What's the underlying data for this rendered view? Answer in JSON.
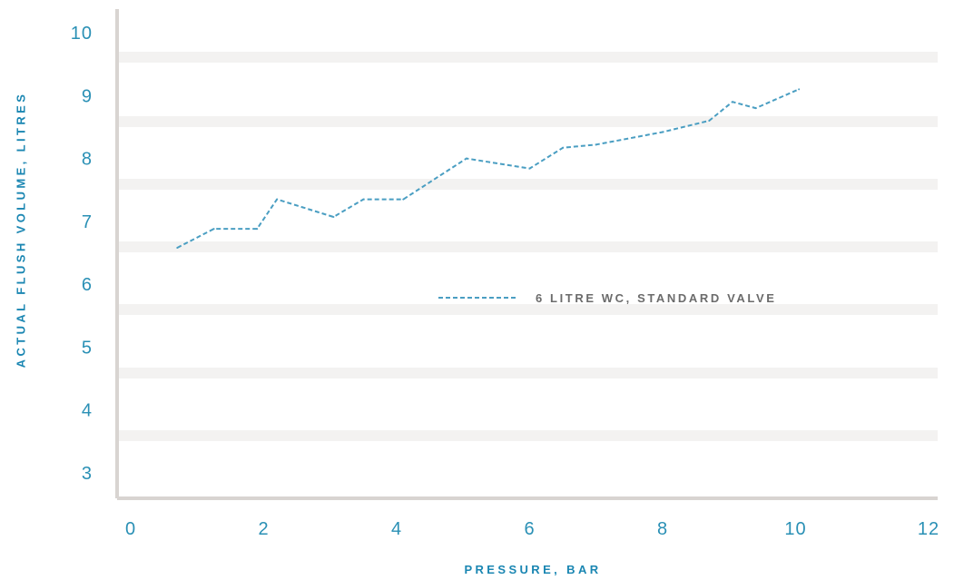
{
  "chart_data": {
    "type": "line",
    "title": "",
    "xlabel": "PRESSURE, BAR",
    "ylabel": "ACTUAL FLUSH VOLUME, LITRES",
    "xlim": [
      0,
      12
    ],
    "ylim": [
      2.5,
      10.5
    ],
    "xticks": [
      0,
      2,
      4,
      6,
      8,
      10,
      12
    ],
    "yticks": [
      3,
      4,
      5,
      6,
      7,
      8,
      9,
      10
    ],
    "grid": "horizontal bands",
    "legend_position": "center-right",
    "series": [
      {
        "name": "6 LITRE WC, STANDARD VALVE",
        "color": "#4a9ec2",
        "style": "dashed",
        "x": [
          0.7,
          1.25,
          1.9,
          2.2,
          3.05,
          3.5,
          4.1,
          5.05,
          6.0,
          6.5,
          7.0,
          8.0,
          8.7,
          9.05,
          9.4,
          10.05
        ],
        "y": [
          6.58,
          6.88,
          6.88,
          7.35,
          7.07,
          7.35,
          7.35,
          8.0,
          7.84,
          8.17,
          8.22,
          8.42,
          8.6,
          8.9,
          8.8,
          9.1
        ]
      }
    ]
  }
}
